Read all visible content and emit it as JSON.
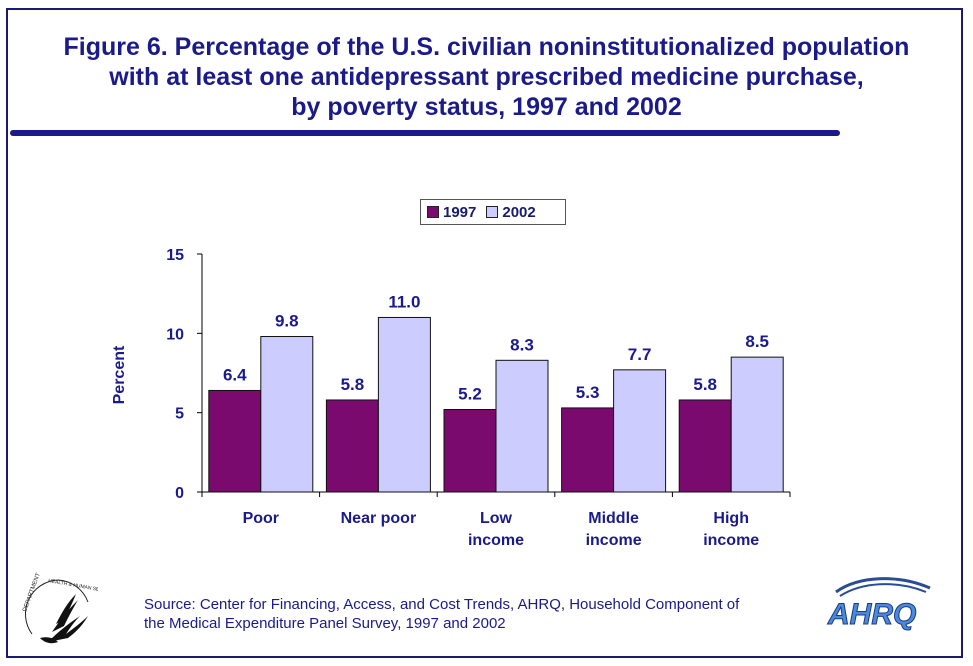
{
  "title_lines": [
    "Figure 6. Percentage of the U.S. civilian noninstitutionalized population",
    "with at least one antidepressant prescribed medicine purchase,",
    "by poverty status, 1997 and 2002"
  ],
  "source_lines": [
    "Source: Center for Financing, Access, and Cost Trends, AHRQ, Household Component of",
    "the Medical Expenditure Panel Survey, 1997 and 2002"
  ],
  "logos": {
    "left": "hhs-eagle-seal",
    "right": "AHRQ"
  },
  "colors": {
    "series_1997": "#7a0a6e",
    "series_2002": "#ccccff",
    "text": "#1a1a8c",
    "frame": "#1a1a6e"
  },
  "chart_data": {
    "type": "bar",
    "categories": [
      [
        "Poor"
      ],
      [
        "Near poor"
      ],
      [
        "Low",
        "income"
      ],
      [
        "Middle",
        "income"
      ],
      [
        "High",
        "income"
      ]
    ],
    "series": [
      {
        "name": "1997",
        "values": [
          6.4,
          5.8,
          5.2,
          5.3,
          5.8
        ],
        "labels": [
          "6.4",
          "5.8",
          "5.2",
          "5.3",
          "5.8"
        ]
      },
      {
        "name": "2002",
        "values": [
          9.8,
          11.0,
          8.3,
          7.7,
          8.5
        ],
        "labels": [
          "9.8",
          "11.0",
          "8.3",
          "7.7",
          "8.5"
        ]
      }
    ],
    "ylabel": "Percent",
    "ylim": [
      0,
      15
    ],
    "yticks": [
      0,
      5,
      10,
      15
    ],
    "grid": false,
    "legend_position": "top-center"
  }
}
